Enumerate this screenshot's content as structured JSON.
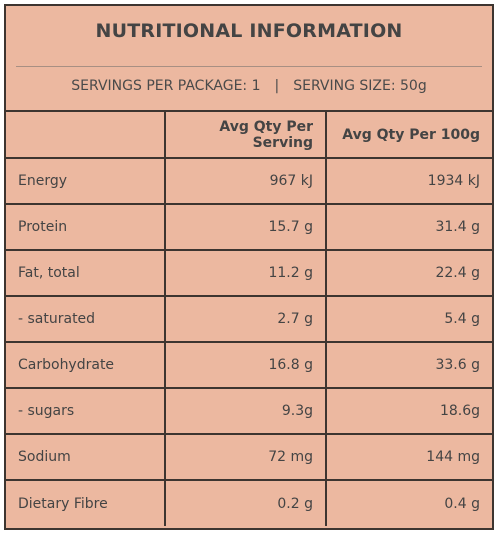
{
  "title": "NUTRITIONAL INFORMATION",
  "servings_per_package": "SERVINGS PER PACKAGE: 1",
  "separator": "|",
  "serving_size": "SERVING SIZE: 50g",
  "columns": [
    "",
    "Avg Qty Per Serving",
    "Avg Qty Per 100g"
  ],
  "rows": [
    {
      "name": "Energy",
      "per_serving": "967 kJ",
      "per_100g": "1934 kJ"
    },
    {
      "name": "Protein",
      "per_serving": "15.7 g",
      "per_100g": "31.4 g"
    },
    {
      "name": "Fat, total",
      "per_serving": "11.2 g",
      "per_100g": "22.4 g"
    },
    {
      "name": "- saturated",
      "per_serving": "2.7 g",
      "per_100g": "5.4 g"
    },
    {
      "name": "Carbohydrate",
      "per_serving": "16.8 g",
      "per_100g": "33.6 g"
    },
    {
      "name": "- sugars",
      "per_serving": "9.3g",
      "per_100g": "18.6g"
    },
    {
      "name": "Sodium",
      "per_serving": "72 mg",
      "per_100g": "144 mg"
    },
    {
      "name": "Dietary Fibre",
      "per_serving": "0.2 g",
      "per_100g": "0.4 g"
    }
  ],
  "colors": {
    "panel_bg": "#ecb8a0",
    "border": "#3d3530",
    "text": "#444444"
  }
}
